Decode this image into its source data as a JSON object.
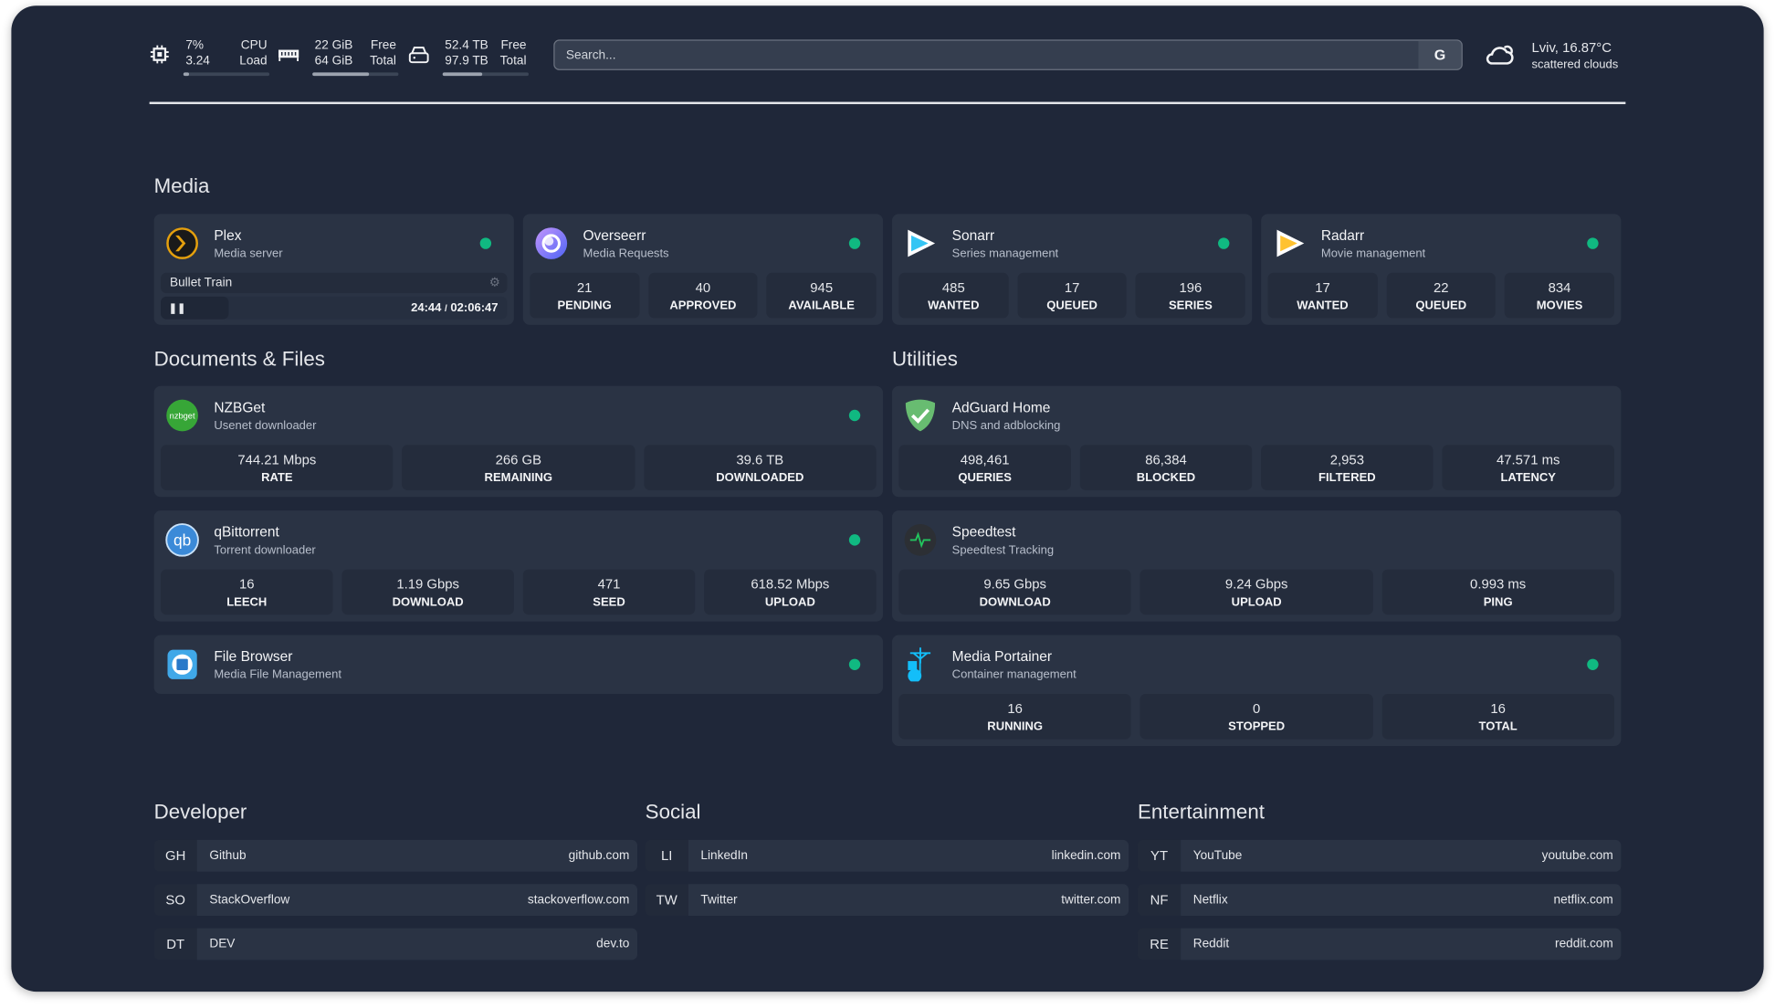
{
  "topbar": {
    "cpu": {
      "icon": "cpu-icon",
      "top_value": "7%",
      "top_label": "CPU",
      "bottom_value": "3.24",
      "bottom_label": "Load",
      "usage_fraction": 0.07
    },
    "memory": {
      "icon": "memory-icon",
      "top_value": "22 GiB",
      "top_label": "Free",
      "bottom_value": "64 GiB",
      "bottom_label": "Total",
      "usage_fraction": 0.66
    },
    "disk": {
      "icon": "disk-icon",
      "top_value": "52.4 TB",
      "top_label": "Free",
      "bottom_value": "97.9 TB",
      "bottom_label": "Total",
      "usage_fraction": 0.46
    },
    "search": {
      "placeholder": "Search...",
      "value": "",
      "provider_button": "G"
    },
    "weather": {
      "icon": "cloud-sun-icon",
      "location_temp": "Lviv, 16.87°C",
      "condition": "scattered clouds"
    }
  },
  "colors": {
    "background": "#1f2739",
    "card": "#2a3344",
    "stat": "#242c3c",
    "status_online": "#10b981"
  },
  "sections": {
    "media": {
      "title": "Media",
      "cards": [
        {
          "name": "Plex",
          "description": "Media server",
          "icon": "plex",
          "status": "online",
          "now_playing": {
            "title": "Bullet Train",
            "elapsed": "24:44",
            "separator": "/",
            "duration": "02:06:47",
            "state": "paused",
            "progress": 0.195,
            "play_icon": "pause-icon"
          }
        },
        {
          "name": "Overseerr",
          "description": "Media Requests",
          "icon": "overseerr",
          "status": "online",
          "stats": [
            {
              "value": "21",
              "label": "PENDING"
            },
            {
              "value": "40",
              "label": "APPROVED"
            },
            {
              "value": "945",
              "label": "AVAILABLE"
            }
          ]
        },
        {
          "name": "Sonarr",
          "description": "Series management",
          "icon": "sonarr",
          "status": "online",
          "stats": [
            {
              "value": "485",
              "label": "WANTED"
            },
            {
              "value": "17",
              "label": "QUEUED"
            },
            {
              "value": "196",
              "label": "SERIES"
            }
          ]
        },
        {
          "name": "Radarr",
          "description": "Movie management",
          "icon": "radarr",
          "status": "online",
          "stats": [
            {
              "value": "17",
              "label": "WANTED"
            },
            {
              "value": "22",
              "label": "QUEUED"
            },
            {
              "value": "834",
              "label": "MOVIES"
            }
          ]
        }
      ]
    },
    "documents": {
      "title": "Documents & Files",
      "cards": [
        {
          "name": "NZBGet",
          "description": "Usenet downloader",
          "icon": "nzbget",
          "status": "online",
          "stats": [
            {
              "value": "744.21 Mbps",
              "label": "RATE"
            },
            {
              "value": "266 GB",
              "label": "REMAINING"
            },
            {
              "value": "39.6 TB",
              "label": "DOWNLOADED"
            }
          ]
        },
        {
          "name": "qBittorrent",
          "description": "Torrent downloader",
          "icon": "qbittorrent",
          "status": "online",
          "stats": [
            {
              "value": "16",
              "label": "LEECH"
            },
            {
              "value": "1.19 Gbps",
              "label": "DOWNLOAD"
            },
            {
              "value": "471",
              "label": "SEED"
            },
            {
              "value": "618.52 Mbps",
              "label": "UPLOAD"
            }
          ]
        },
        {
          "name": "File Browser",
          "description": "Media File Management",
          "icon": "filebrowser",
          "status": "online"
        }
      ]
    },
    "utilities": {
      "title": "Utilities",
      "cards": [
        {
          "name": "AdGuard Home",
          "description": "DNS and adblocking",
          "icon": "adguard",
          "stats": [
            {
              "value": "498,461",
              "label": "QUERIES"
            },
            {
              "value": "86,384",
              "label": "BLOCKED"
            },
            {
              "value": "2,953",
              "label": "FILTERED"
            },
            {
              "value": "47.571 ms",
              "label": "LATENCY"
            }
          ]
        },
        {
          "name": "Speedtest",
          "description": "Speedtest Tracking",
          "icon": "speedtest",
          "stats": [
            {
              "value": "9.65 Gbps",
              "label": "DOWNLOAD"
            },
            {
              "value": "9.24 Gbps",
              "label": "UPLOAD"
            },
            {
              "value": "0.993 ms",
              "label": "PING"
            }
          ]
        },
        {
          "name": "Media Portainer",
          "description": "Container management",
          "icon": "portainer",
          "status": "online",
          "stats": [
            {
              "value": "16",
              "label": "RUNNING"
            },
            {
              "value": "0",
              "label": "STOPPED"
            },
            {
              "value": "16",
              "label": "TOTAL"
            }
          ]
        }
      ]
    }
  },
  "bookmarks": [
    {
      "title": "Developer",
      "items": [
        {
          "abbr": "GH",
          "name": "Github",
          "url": "github.com"
        },
        {
          "abbr": "SO",
          "name": "StackOverflow",
          "url": "stackoverflow.com"
        },
        {
          "abbr": "DT",
          "name": "DEV",
          "url": "dev.to"
        }
      ]
    },
    {
      "title": "Social",
      "items": [
        {
          "abbr": "LI",
          "name": "LinkedIn",
          "url": "linkedin.com"
        },
        {
          "abbr": "TW",
          "name": "Twitter",
          "url": "twitter.com"
        }
      ]
    },
    {
      "title": "Entertainment",
      "items": [
        {
          "abbr": "YT",
          "name": "YouTube",
          "url": "youtube.com"
        },
        {
          "abbr": "NF",
          "name": "Netflix",
          "url": "netflix.com"
        },
        {
          "abbr": "RE",
          "name": "Reddit",
          "url": "reddit.com"
        }
      ]
    }
  ]
}
